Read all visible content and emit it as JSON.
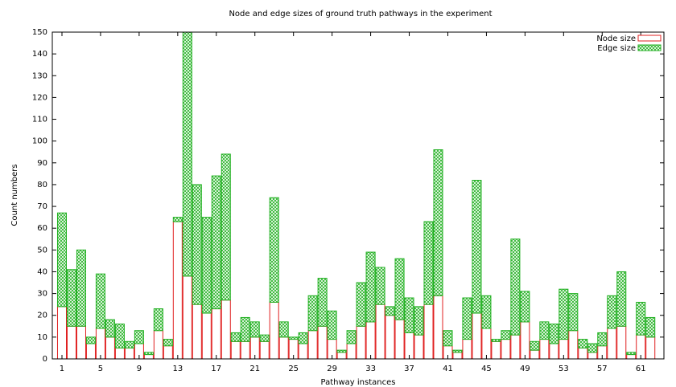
{
  "chart_data": {
    "type": "bar",
    "stacked": true,
    "title": "Node and edge sizes of ground truth pathways in the experiment",
    "x_label": "Pathway instances",
    "y_label": "Count numbers",
    "x": [
      1,
      2,
      3,
      4,
      5,
      6,
      7,
      8,
      9,
      10,
      11,
      12,
      13,
      14,
      15,
      16,
      17,
      18,
      19,
      20,
      21,
      22,
      23,
      24,
      25,
      26,
      27,
      28,
      29,
      30,
      31,
      32,
      33,
      34,
      35,
      36,
      37,
      38,
      39,
      40,
      41,
      42,
      43,
      44,
      45,
      46,
      47,
      48,
      49,
      50,
      51,
      52,
      53,
      54,
      55,
      56,
      57,
      58,
      59,
      60,
      61,
      62
    ],
    "series": [
      {
        "name": "Node size",
        "color": "#e02020",
        "pattern": "none",
        "values": [
          24,
          15,
          15,
          7,
          14,
          10,
          5,
          5,
          7,
          2,
          13,
          6,
          63,
          38,
          25,
          21,
          23,
          27,
          8,
          8,
          10,
          8,
          26,
          10,
          9,
          7,
          13,
          15,
          9,
          3,
          7,
          15,
          17,
          25,
          20,
          18,
          12,
          11,
          25,
          29,
          6,
          3,
          9,
          21,
          14,
          8,
          9,
          11,
          17,
          4,
          9,
          7,
          9,
          13,
          5,
          3,
          6,
          14,
          15,
          2,
          11,
          10
        ]
      },
      {
        "name": "Edge size",
        "color": "#20b020",
        "pattern": "crosshatch",
        "values": [
          43,
          26,
          35,
          3,
          25,
          8,
          11,
          3,
          6,
          1,
          10,
          3,
          2,
          112,
          55,
          44,
          61,
          67,
          4,
          11,
          7,
          3,
          48,
          7,
          1,
          5,
          16,
          22,
          13,
          1,
          6,
          20,
          32,
          17,
          4,
          28,
          16,
          13,
          38,
          67,
          7,
          1,
          19,
          61,
          15,
          1,
          4,
          44,
          14,
          4,
          8,
          9,
          23,
          17,
          4,
          4,
          6,
          15,
          25,
          1,
          15,
          9
        ]
      }
    ],
    "xlim": [
      0,
      63.4
    ],
    "xticks": [
      1,
      5,
      9,
      13,
      17,
      21,
      25,
      29,
      33,
      37,
      41,
      45,
      49,
      53,
      57,
      61
    ],
    "ylim": [
      0,
      150
    ],
    "yticks": [
      0,
      10,
      20,
      30,
      40,
      50,
      60,
      70,
      80,
      90,
      100,
      110,
      120,
      130,
      140,
      150
    ],
    "legend": "top-right"
  }
}
